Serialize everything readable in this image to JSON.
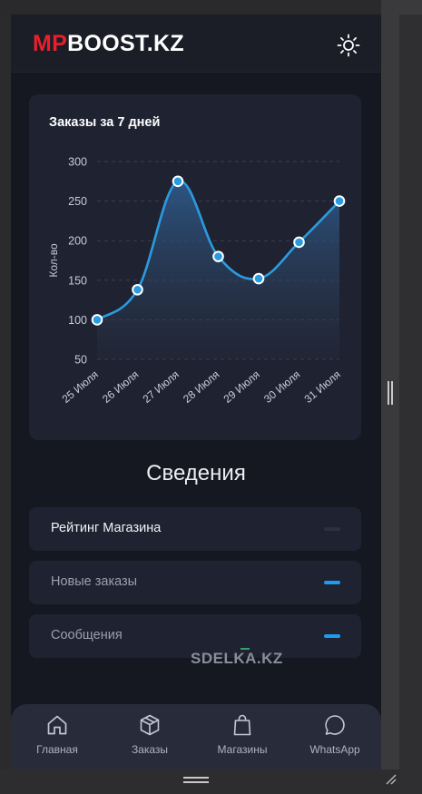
{
  "header": {
    "logo_accent": "MP",
    "logo_rest": "BOOST.KZ",
    "theme_icon": "sun-icon"
  },
  "chart_data": {
    "type": "line",
    "title": "Заказы за 7 дней",
    "ylabel": "Кол-во",
    "xlabel": "",
    "categories": [
      "25 Июля",
      "26 Июля",
      "27 Июля",
      "28 Июля",
      "29 Июля",
      "30 Июля",
      "31 Июля"
    ],
    "values": [
      100,
      138,
      275,
      180,
      152,
      198,
      250
    ],
    "ylim": [
      50,
      300
    ],
    "yticks": [
      300,
      250,
      200,
      150,
      100,
      50
    ],
    "grid": true,
    "smooth": true,
    "area_fill": true,
    "line_color": "#2b9be0",
    "point_fill": "#2b9be0",
    "point_stroke": "#ffffff"
  },
  "section": {
    "title": "Сведения"
  },
  "info_rows": [
    {
      "label": "Рейтинг Магазина",
      "bar_color": "#2c3040"
    },
    {
      "label": "Новые заказы",
      "bar_color": "#1d9bf0"
    },
    {
      "label": "Сообщения",
      "bar_color": "#1d9bf0"
    }
  ],
  "watermark": "SDELKA.KZ",
  "nav": [
    {
      "label": "Главная",
      "icon": "home-icon"
    },
    {
      "label": "Заказы",
      "icon": "box-icon"
    },
    {
      "label": "Магазины",
      "icon": "shopping-bag-icon"
    },
    {
      "label": "WhatsApp",
      "icon": "chat-bubble-icon"
    }
  ]
}
